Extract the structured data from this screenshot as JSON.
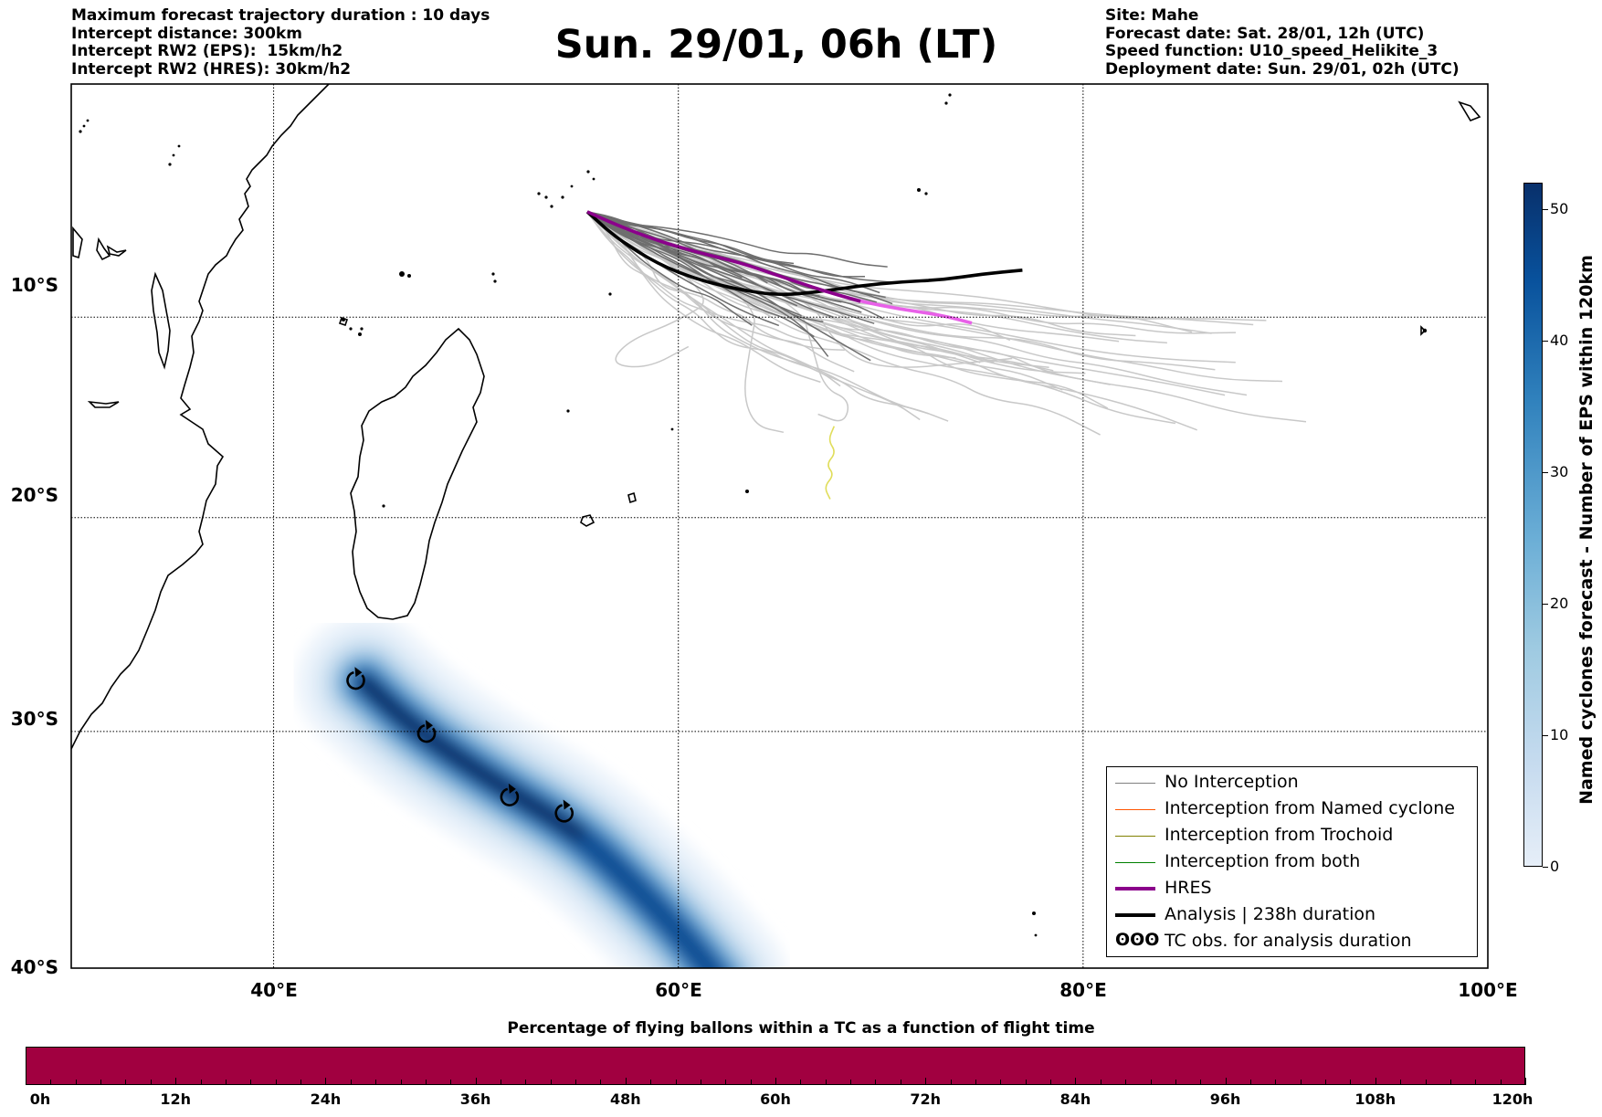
{
  "header_left": [
    "Maximum forecast trajectory duration : 10 days",
    "Intercept distance: 300km",
    "Intercept RW2 (EPS):  15km/h2",
    "Intercept RW2 (HRES): 30km/h2"
  ],
  "header_right": [
    "Site: Mahe",
    "Forecast date: Sat. 28/01, 12h (UTC)",
    "Speed function: U10_speed_Helikite_3",
    "Deployment date: Sun. 29/01, 02h (UTC)"
  ],
  "title": "Sun. 29/01, 06h (LT)",
  "map": {
    "lon_range": [
      30,
      100
    ],
    "lat_range": [
      -40,
      2
    ],
    "lat_ticks": [
      {
        "value": -10,
        "label": "10°S"
      },
      {
        "value": -20,
        "label": "20°S"
      },
      {
        "value": -30,
        "label": "30°S"
      },
      {
        "value": -40,
        "label": "40°S"
      }
    ],
    "lon_ticks": [
      {
        "value": 40,
        "label": "40°E"
      },
      {
        "value": 60,
        "label": "60°E"
      },
      {
        "value": 80,
        "label": "80°E"
      },
      {
        "value": 100,
        "label": "100°E"
      }
    ],
    "grid": true
  },
  "legend": {
    "items": [
      {
        "label": "No Interception",
        "color": "#808080",
        "width": 1.5
      },
      {
        "label": "Interception from Named cyclone",
        "color": "#ff5500",
        "width": 1.5
      },
      {
        "label": "Interception from Trochoid",
        "color": "#808000",
        "width": 1.5
      },
      {
        "label": "Interception from both",
        "color": "#008000",
        "width": 1.5
      },
      {
        "label": "HRES",
        "color": "#8b008b",
        "width": 4
      },
      {
        "label": "Analysis | 238h duration",
        "color": "#000000",
        "width": 4
      },
      {
        "label": "TC obs. for analysis duration",
        "color": "#000000",
        "symbol": "ʘʘʘ"
      }
    ],
    "placement": "bottom-right"
  },
  "colorbar": {
    "label": "Named cyclones forecast - Number of EPS within 120km",
    "ticks": [
      "0",
      "10",
      "20",
      "30",
      "40",
      "50"
    ],
    "range": [
      0,
      52
    ]
  },
  "hbar": {
    "title": "Percentage of flying ballons within a TC as a function of flight time",
    "ticks": [
      "0h",
      "12h",
      "24h",
      "36h",
      "48h",
      "60h",
      "72h",
      "84h",
      "96h",
      "108h",
      "120h"
    ],
    "color": "#a10040"
  },
  "tracks": {
    "origin": [
      55.5,
      -4.6
    ],
    "hres": [
      [
        55.5,
        -4.6
      ],
      [
        57,
        -5.3
      ],
      [
        59,
        -6.1
      ],
      [
        61,
        -6.7
      ],
      [
        63,
        -7.2
      ],
      [
        65,
        -7.9
      ],
      [
        67,
        -8.6
      ],
      [
        69,
        -9.2
      ],
      [
        71,
        -9.6
      ],
      [
        73,
        -9.9
      ],
      [
        74.5,
        -10.3
      ]
    ],
    "analysis": [
      [
        55.5,
        -4.6
      ],
      [
        57,
        -6
      ],
      [
        59,
        -7.3
      ],
      [
        61,
        -8.1
      ],
      [
        63,
        -8.6
      ],
      [
        65,
        -8.9
      ],
      [
        67,
        -8.7
      ],
      [
        69,
        -8.4
      ],
      [
        71,
        -8.2
      ],
      [
        73,
        -8.1
      ],
      [
        75,
        -7.8
      ],
      [
        77,
        -7.6
      ]
    ],
    "yellow": [
      [
        67.7,
        -15.5
      ],
      [
        67.4,
        -16.2
      ],
      [
        67.8,
        -16.8
      ],
      [
        67.3,
        -17.4
      ],
      [
        67.7,
        -17.9
      ],
      [
        67.2,
        -18.5
      ],
      [
        67.5,
        -19.1
      ]
    ],
    "tc_obs": [
      [
        44.1,
        -27.7
      ],
      [
        47.6,
        -30.1
      ],
      [
        51.7,
        -32.9
      ],
      [
        54.4,
        -33.6
      ]
    ],
    "density_axis": [
      [
        44.5,
        -27.8
      ],
      [
        47,
        -29.9
      ],
      [
        51,
        -32.3
      ],
      [
        55,
        -34.4
      ],
      [
        58,
        -36.8
      ],
      [
        60.5,
        -39
      ],
      [
        62,
        -40.5
      ]
    ]
  }
}
